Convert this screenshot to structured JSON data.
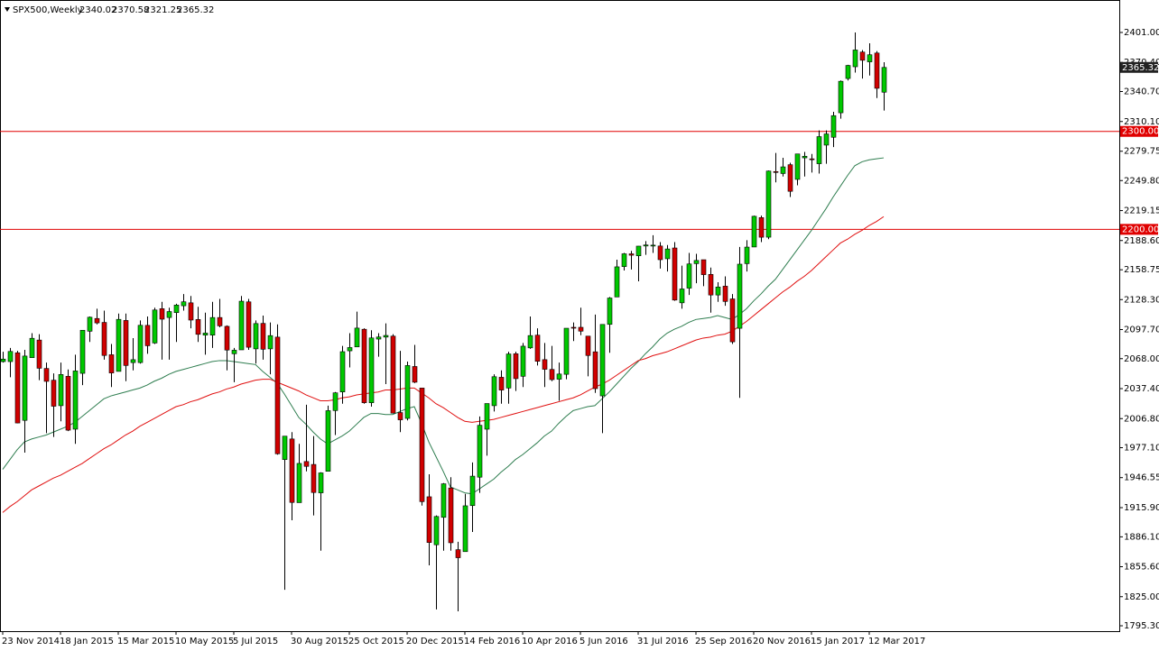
{
  "chart_data": {
    "type": "candlestick",
    "title": "SPX500,Weekly",
    "categories": [
      "23 Nov 2014",
      null,
      null,
      null,
      null,
      null,
      null,
      null,
      "18 Jan 2015",
      null,
      null,
      null,
      null,
      null,
      null,
      null,
      "15 Mar 2015",
      null,
      null,
      null,
      null,
      null,
      null,
      null,
      "10 May 2015",
      null,
      null,
      null,
      null,
      null,
      null,
      null,
      "5 Jul 2015",
      null,
      null,
      null,
      null,
      null,
      null,
      null,
      "30 Aug 2015",
      null,
      null,
      null,
      null,
      null,
      null,
      null,
      "25 Oct 2015",
      null,
      null,
      null,
      null,
      null,
      null,
      null,
      "20 Dec 2015",
      null,
      null,
      null,
      null,
      null,
      null,
      null,
      "14 Feb 2016",
      null,
      null,
      null,
      null,
      null,
      null,
      null,
      "10 Apr 2016",
      null,
      null,
      null,
      null,
      null,
      null,
      null,
      "5 Jun 2016",
      null,
      null,
      null,
      null,
      null,
      null,
      null,
      "31 Jul 2016",
      null,
      null,
      null,
      null,
      null,
      null,
      null,
      "25 Sep 2016",
      null,
      null,
      null,
      null,
      null,
      null,
      null,
      "20 Nov 2016",
      null,
      null,
      null,
      null,
      null,
      null,
      null,
      "15 Jan 2017",
      null,
      null,
      null,
      null,
      null,
      null,
      null,
      "12 Mar 2017",
      null,
      null
    ],
    "open": [
      2065,
      2065,
      2074,
      2005,
      2069,
      2087,
      2058,
      2046,
      2020,
      2050,
      1996,
      2053,
      2096,
      2109,
      2105,
      2072,
      2055,
      2107,
      2064,
      2064,
      2102,
      2084,
      2119,
      2110,
      2115,
      2122,
      2125,
      2108,
      2092,
      2092,
      2110,
      2101,
      2073,
      2077,
      2126,
      2078,
      2104,
      2078,
      2090,
      1965,
      1986,
      1921,
      1963,
      1960,
      1931,
      1953,
      2015,
      2034,
      2076,
      2080,
      2098,
      2023,
      2088,
      2090,
      2091,
      2013,
      2007,
      2060,
      2038,
      1927,
      1878,
      1906,
      1936,
      1873,
      1871,
      1918,
      1947,
      1996,
      2020,
      2049,
      2038,
      2073,
      2050,
      2079,
      2092,
      2067,
      2057,
      2047,
      2052,
      2100,
      2100,
      2091,
      2075,
      2030,
      2103,
      2131,
      2162,
      2175,
      2173,
      2183,
      2183,
      2183,
      2170,
      2181,
      2125,
      2140,
      2165,
      2169,
      2154,
      2133,
      2142,
      2129,
      2099,
      2165,
      2182,
      2212,
      2192,
      2259,
      2257,
      2266,
      2251,
      2273,
      2272,
      2267,
      2286,
      2294,
      2319,
      2354,
      2366,
      2381,
      2371,
      2380,
      2340.02
    ],
    "high": [
      2075,
      2079,
      2076,
      2077,
      2094,
      2093,
      2064,
      2053,
      2064,
      2057,
      2072,
      2097,
      2111,
      2119,
      2117,
      2083,
      2114,
      2114,
      2089,
      2107,
      2111,
      2120,
      2126,
      2120,
      2124,
      2134,
      2132,
      2121,
      2115,
      2126,
      2129,
      2102,
      2079,
      2132,
      2129,
      2107,
      2112,
      2105,
      2103,
      1989,
      1993,
      1981,
      2021,
      1989,
      1952,
      2020,
      2034,
      2081,
      2094,
      2116,
      2099,
      2097,
      2094,
      2104,
      2093,
      2076,
      2065,
      2082,
      2038,
      1950,
      1908,
      1941,
      1947,
      1881,
      1930,
      1962,
      2009,
      2022,
      2052,
      2056,
      2075,
      2075,
      2084,
      2111,
      2099,
      2084,
      2081,
      2064,
      2099,
      2105,
      2120,
      2091,
      2113,
      2103,
      2131,
      2169,
      2176,
      2178,
      2183,
      2188,
      2194,
      2187,
      2184,
      2187,
      2163,
      2176,
      2175,
      2169,
      2161,
      2146,
      2152,
      2134,
      2182,
      2189,
      2214,
      2214,
      2260,
      2278,
      2273,
      2268,
      2277,
      2279,
      2277,
      2301,
      2301,
      2320,
      2352,
      2368,
      2401,
      2383,
      2390,
      2382,
      2370.58
    ],
    "low": [
      2064,
      2049,
      2002,
      1972,
      2069,
      2046,
      1992,
      1988,
      2004,
      1994,
      1981,
      2041,
      2085,
      2103,
      2067,
      2039,
      2055,
      2045,
      2056,
      2063,
      2073,
      2083,
      2067,
      2067,
      2085,
      2117,
      2099,
      2085,
      2072,
      2079,
      2100,
      2056,
      2044,
      2077,
      2077,
      2063,
      2067,
      2052,
      1970,
      1832,
      1903,
      1921,
      1953,
      1908,
      1872,
      1953,
      1990,
      2022,
      2059,
      2080,
      2022,
      2019,
      2070,
      2042,
      2012,
      1993,
      2005,
      2043,
      1918,
      1857,
      1812,
      1872,
      1872,
      1810,
      1871,
      1891,
      1931,
      1969,
      2014,
      2022,
      2022,
      2035,
      2039,
      2078,
      2061,
      2039,
      2045,
      2025,
      2047,
      2086,
      2092,
      2050,
      2033,
      1992,
      2074,
      2131,
      2158,
      2159,
      2147,
      2174,
      2176,
      2160,
      2157,
      2127,
      2119,
      2133,
      2145,
      2142,
      2115,
      2126,
      2122,
      2083,
      2028,
      2157,
      2182,
      2187,
      2190,
      2248,
      2254,
      2233,
      2245,
      2254,
      2258,
      2257,
      2267,
      2284,
      2313,
      2352,
      2360,
      2354,
      2357,
      2334,
      2321.25
    ],
    "close": [
      2067.56,
      2075.37,
      2002.33,
      2070.65,
      2088.77,
      2058.2,
      2044.81,
      2019.42,
      2051.82,
      1994.99,
      2055.47,
      2096.99,
      2110.3,
      2104.5,
      2071.26,
      2053.4,
      2108.1,
      2061.02,
      2066.96,
      2102.06,
      2081.18,
      2117.69,
      2108.29,
      2116.1,
      2122.73,
      2126.06,
      2107.39,
      2092.83,
      2094.11,
      2109.99,
      2101.49,
      2076.78,
      2076.62,
      2126.64,
      2079.65,
      2103.84,
      2077.57,
      2091.54,
      1970.89,
      1988.87,
      1921.22,
      1961.05,
      1958.03,
      1931.34,
      1951.36,
      2014.89,
      2033.11,
      2075.15,
      2079.36,
      2099.2,
      2023.04,
      2089.17,
      2090.11,
      2091.69,
      2012.37,
      2005.55,
      2060.99,
      2043.94,
      1922.03,
      1880.33,
      1906.9,
      1940.24,
      1880.05,
      1864.78,
      1917.78,
      1948.05,
      1999.99,
      2022.19,
      2049.58,
      2035.94,
      2072.78,
      2047.6,
      2080.73,
      2091.58,
      2065.3,
      2057.14,
      2046.61,
      2052.32,
      2099.06,
      2099.13,
      2096.07,
      2071.22,
      2037.41,
      2102.95,
      2129.9,
      2161.74,
      2175.03,
      2173.6,
      2182.87,
      2184.05,
      2183.87,
      2169.04,
      2179.98,
      2127.81,
      2139.16,
      2164.69,
      2168.27,
      2153.74,
      2132.98,
      2141.16,
      2126.41,
      2085.18,
      2164.45,
      2181.9,
      2213.35,
      2191.95,
      2259.53,
      2258.07,
      2263.79,
      2238.83,
      2276.98,
      2274.64,
      2271.31,
      2294.69,
      2297.42,
      2316.1,
      2351.16,
      2367.34,
      2383.12,
      2372.6,
      2378.25,
      2343.98,
      2365.32
    ],
    "up_color": "#00c800",
    "down_color": "#d00000",
    "moving_averages": [
      {
        "color": "#2e7d4f",
        "values": [
          1955,
          1965,
          1975,
          1983,
          1986,
          1988,
          1990,
          1993,
          1996,
          1999,
          2003,
          2009,
          2015,
          2021,
          2027,
          2030,
          2032,
          2034,
          2036,
          2038,
          2041,
          2045,
          2048,
          2052,
          2055,
          2057,
          2059,
          2061,
          2063,
          2065,
          2066,
          2066,
          2065,
          2064,
          2063,
          2062,
          2055,
          2049,
          2043,
          2032,
          2020,
          2008,
          2001,
          1993,
          1986,
          1981,
          1985,
          1989,
          1994,
          2001,
          2008,
          2012,
          2012,
          2011,
          2011,
          2014,
          2017,
          2019,
          2002,
          1983,
          1968,
          1953,
          1937,
          1934,
          1931,
          1930,
          1935,
          1940,
          1945,
          1952,
          1958,
          1965,
          1970,
          1976,
          1982,
          1989,
          1994,
          2002,
          2009,
          2015,
          2017,
          2019,
          2020,
          2027,
          2034,
          2042,
          2050,
          2058,
          2065,
          2073,
          2080,
          2088,
          2094,
          2098,
          2101,
          2105,
          2108,
          2109,
          2110,
          2112,
          2110,
          2108,
          2113,
          2119,
          2127,
          2134,
          2142,
          2149,
          2159,
          2169,
          2179,
          2189,
          2199,
          2210,
          2221,
          2233,
          2244,
          2255,
          2265,
          2269,
          2271,
          2272,
          2273
        ]
      },
      {
        "color": "#e01010",
        "values": [
          1911,
          1917,
          1922,
          1928,
          1934,
          1938,
          1942,
          1946,
          1949,
          1953,
          1957,
          1961,
          1966,
          1971,
          1976,
          1980,
          1985,
          1990,
          1994,
          1999,
          2003,
          2007,
          2011,
          2015,
          2019,
          2021,
          2024,
          2026,
          2029,
          2032,
          2034,
          2037,
          2039,
          2042,
          2044,
          2046,
          2047,
          2047,
          2044,
          2041,
          2038,
          2035,
          2031,
          2028,
          2025,
          2025,
          2026,
          2028,
          2029,
          2031,
          2032,
          2033,
          2034,
          2036,
          2036,
          2037,
          2038,
          2038,
          2033,
          2028,
          2022,
          2018,
          2013,
          2008,
          2004,
          2003,
          2004,
          2005,
          2006,
          2008,
          2010,
          2012,
          2014,
          2016,
          2018,
          2020,
          2022,
          2024,
          2026,
          2028,
          2031,
          2035,
          2039,
          2042,
          2046,
          2051,
          2056,
          2061,
          2066,
          2068,
          2071,
          2073,
          2075,
          2078,
          2081,
          2084,
          2087,
          2089,
          2090,
          2092,
          2093,
          2096,
          2101,
          2106,
          2112,
          2118,
          2124,
          2130,
          2136,
          2141,
          2147,
          2152,
          2158,
          2165,
          2172,
          2179,
          2186,
          2190,
          2195,
          2199,
          2204,
          2208,
          2213
        ]
      }
    ],
    "levels": [
      {
        "value": 2300,
        "label": "2300.00"
      },
      {
        "value": 2200,
        "label": "2200.00"
      }
    ],
    "level_color": "#e00000",
    "ylim": [
      1789.8,
      2432.3
    ],
    "yticks": [
      {
        "value": 2401.0,
        "label": "2401.00"
      },
      {
        "value": 2370.4,
        "label": "2370.40"
      },
      {
        "value": 2340.7,
        "label": "2340.70"
      },
      {
        "value": 2310.1,
        "label": "2310.10"
      },
      {
        "value": 2279.75,
        "label": "2279.75"
      },
      {
        "value": 2249.8,
        "label": "2249.80"
      },
      {
        "value": 2219.15,
        "label": "2219.15"
      },
      {
        "value": 2188.6,
        "label": "2188.60"
      },
      {
        "value": 2158.75,
        "label": "2158.75"
      },
      {
        "value": 2128.3,
        "label": "2128.30"
      },
      {
        "value": 2097.7,
        "label": "2097.70"
      },
      {
        "value": 2068.0,
        "label": "2068.00"
      },
      {
        "value": 2037.4,
        "label": "2037.40"
      },
      {
        "value": 2006.8,
        "label": "2006.80"
      },
      {
        "value": 1977.1,
        "label": "1977.10"
      },
      {
        "value": 1946.55,
        "label": "1946.55"
      },
      {
        "value": 1915.9,
        "label": "1915.90"
      },
      {
        "value": 1886.1,
        "label": "1886.10"
      },
      {
        "value": 1855.6,
        "label": "1855.60"
      },
      {
        "value": 1825.0,
        "label": "1825.00"
      },
      {
        "value": 1795.3,
        "label": "1795.30"
      }
    ]
  }
}
